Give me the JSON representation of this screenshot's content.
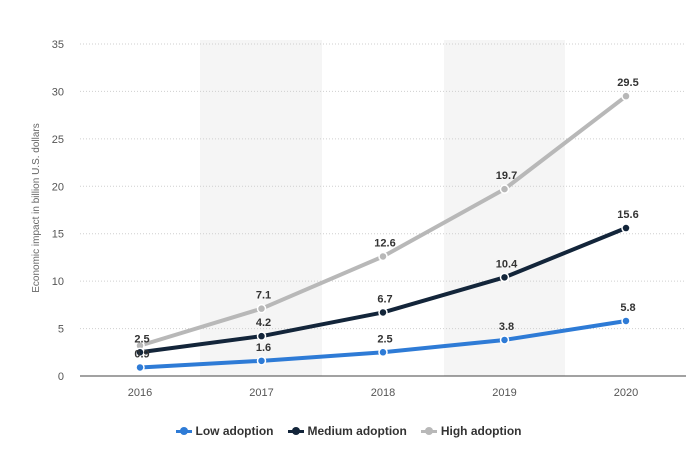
{
  "chart_data": {
    "type": "line",
    "categories": [
      "2016",
      "2017",
      "2018",
      "2019",
      "2020"
    ],
    "series": [
      {
        "name": "Low adoption",
        "color": "#2e7bd6",
        "values": [
          0.9,
          1.6,
          2.5,
          3.8,
          5.8
        ]
      },
      {
        "name": "Medium adoption",
        "color": "#13253a",
        "values": [
          2.5,
          4.2,
          6.7,
          10.4,
          15.6
        ]
      },
      {
        "name": "High adoption",
        "color": "#b8b8b8",
        "values": [
          3.2,
          7.1,
          12.6,
          19.7,
          29.5
        ]
      }
    ],
    "data_labels": [
      [
        "0.9",
        "1.6",
        "2.5",
        "3.8",
        "5.8"
      ],
      [
        "2.5",
        "4.2",
        "6.7",
        "10.4",
        "15.6"
      ],
      [
        "",
        "7.1",
        "12.6",
        "19.7",
        "29.5"
      ]
    ],
    "ylabel": "Economic impact in billion U.S. dollars",
    "ylim": [
      0,
      35
    ],
    "yticks": [
      "0",
      "5",
      "10",
      "15",
      "20",
      "25",
      "30",
      "35"
    ],
    "grid": true,
    "legend_position": "bottom-center"
  }
}
